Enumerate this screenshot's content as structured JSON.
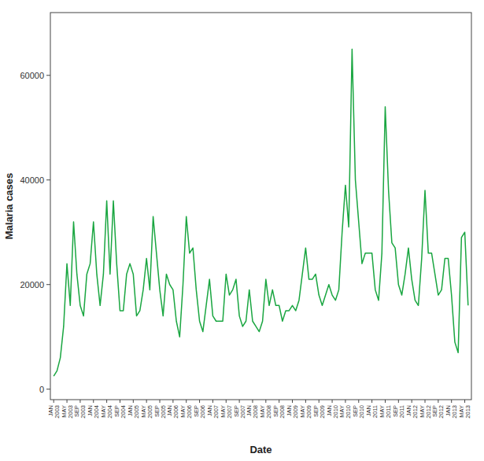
{
  "chart_data": {
    "type": "line",
    "xlabel": "Date",
    "ylabel": "Malaria cases",
    "color": "#1aA641",
    "ylim": [
      -2000,
      72000
    ],
    "yticks": [
      0,
      20000,
      40000,
      60000
    ],
    "grid": false,
    "categories": [
      "JAN\n2003",
      null,
      null,
      null,
      "MAY\n2003",
      null,
      null,
      null,
      "SEP\n2003",
      null,
      null,
      null,
      "JAN\n2004",
      null,
      null,
      null,
      "MAY\n2004",
      null,
      null,
      null,
      "SEP\n2004",
      null,
      null,
      null,
      "JAN\n2005",
      null,
      null,
      null,
      "MAY\n2005",
      null,
      null,
      null,
      "SEP\n2005",
      null,
      null,
      null,
      "JAN\n2006",
      null,
      null,
      null,
      "MAY\n2006",
      null,
      null,
      null,
      "SEP\n2006",
      null,
      null,
      null,
      "JAN\n2007",
      null,
      null,
      null,
      "MAY\n2007",
      null,
      null,
      null,
      "SEP\n2007",
      null,
      null,
      null,
      "JAN\n2008",
      null,
      null,
      null,
      "MAY\n2008",
      null,
      null,
      null,
      "SEP\n2008",
      null,
      null,
      null,
      "JAN\n2009",
      null,
      null,
      null,
      "MAY\n2009",
      null,
      null,
      null,
      "SEP\n2009",
      null,
      null,
      null,
      "JAN\n2010",
      null,
      null,
      null,
      "MAY\n2010",
      null,
      null,
      null,
      "SEP\n2010",
      null,
      null,
      null,
      "JAN\n2011",
      null,
      null,
      null,
      "MAY\n2011",
      null,
      null,
      null,
      "SEP\n2011",
      null,
      null,
      null,
      "JAN\n2012",
      null,
      null,
      null,
      "MAY\n2012",
      null,
      null,
      null,
      "SEP\n2012",
      null,
      null,
      null,
      "JAN\n2013",
      null,
      null,
      null,
      "MAY\n2013",
      null
    ],
    "values": [
      2500,
      3500,
      6000,
      12000,
      24000,
      16000,
      32000,
      22000,
      16000,
      14000,
      22000,
      24000,
      32000,
      22000,
      16000,
      22000,
      36000,
      22000,
      36000,
      24000,
      15000,
      15000,
      22000,
      24000,
      22000,
      14000,
      15000,
      19000,
      25000,
      19000,
      33000,
      26000,
      19000,
      14000,
      22000,
      20000,
      19000,
      13000,
      10000,
      20000,
      33000,
      26000,
      27000,
      19000,
      13000,
      11000,
      16000,
      21000,
      14000,
      13000,
      13000,
      13000,
      22000,
      18000,
      19000,
      21000,
      14000,
      12000,
      13000,
      19000,
      13000,
      12000,
      11000,
      13000,
      21000,
      16000,
      19000,
      16000,
      16000,
      13000,
      15000,
      15000,
      16000,
      15000,
      17000,
      22000,
      27000,
      21000,
      21000,
      22000,
      18000,
      16000,
      18000,
      20000,
      18000,
      17000,
      19000,
      30000,
      39000,
      31000,
      65000,
      40000,
      32000,
      24000,
      26000,
      26000,
      26000,
      19000,
      17000,
      26000,
      54000,
      38000,
      28000,
      27000,
      20000,
      18000,
      22000,
      27000,
      21000,
      17000,
      16000,
      25000,
      38000,
      26000,
      26000,
      22000,
      18000,
      19000,
      25000,
      25000,
      18000,
      9000,
      7000,
      29000,
      30000,
      16000
    ]
  }
}
